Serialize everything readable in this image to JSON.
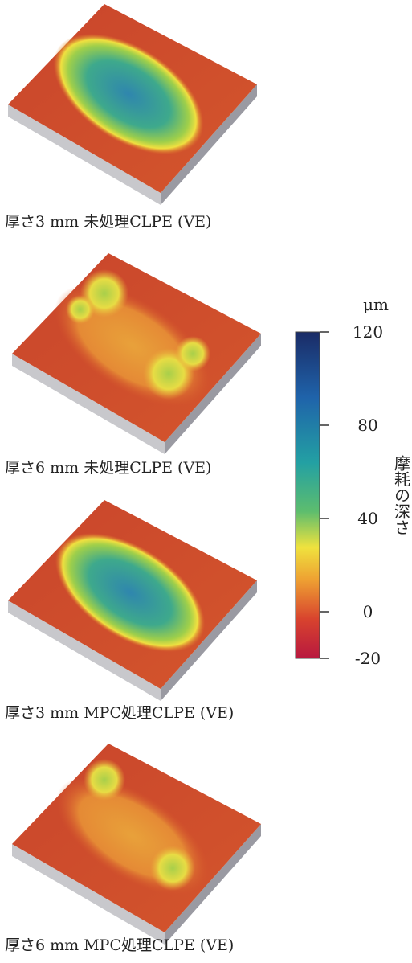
{
  "panels": [
    {
      "caption": "厚さ3 mm 未処理CLPE (VE)"
    },
    {
      "caption": "厚さ6 mm 未処理CLPE (VE)"
    },
    {
      "caption": "厚さ3 mm MPC処理CLPE (VE)"
    },
    {
      "caption": "厚さ6 mm MPC処理CLPE (VE)"
    }
  ],
  "colorbar": {
    "unit": "μm",
    "label": "摩耗の深さ",
    "lim": [
      -20,
      120
    ],
    "ticks": [
      120,
      80,
      40,
      0,
      -20
    ]
  }
}
